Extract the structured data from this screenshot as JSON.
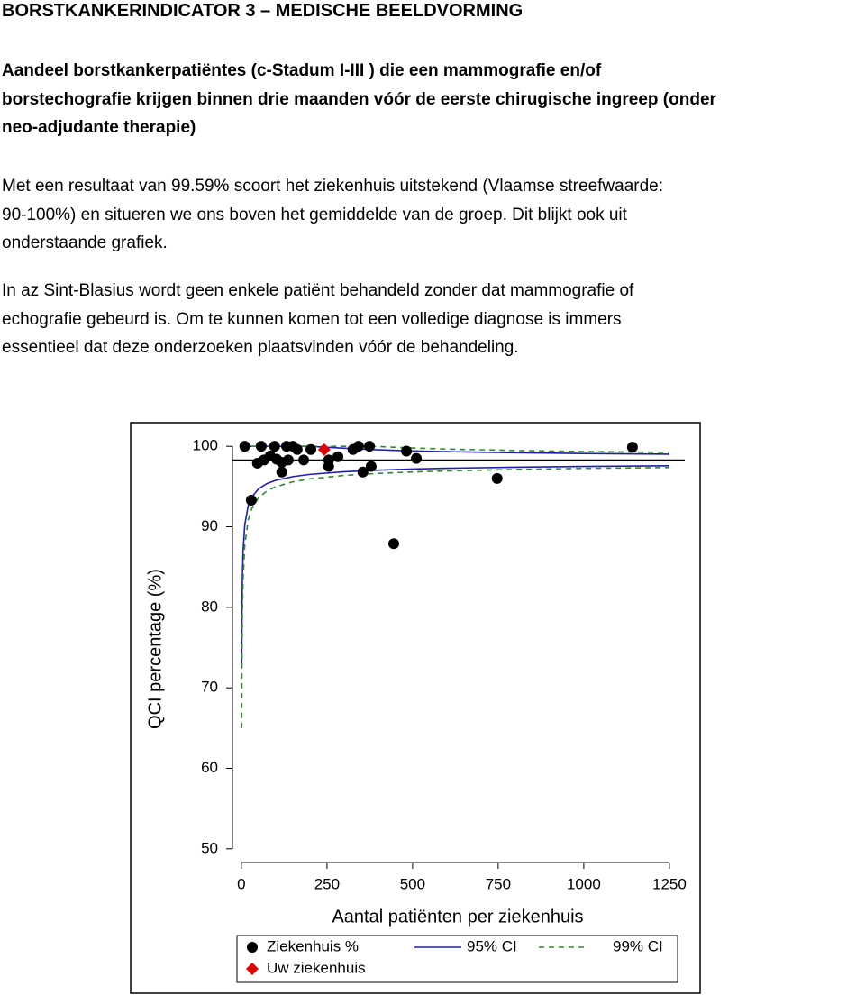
{
  "header": {
    "title": "BORSTKANKERINDICATOR 3 – MEDISCHE BEELDVORMING"
  },
  "intro": {
    "lines": [
      "Aandeel borstkankerpatiëntes (c-Stadum I-III ) die een mammografie en/of",
      "borstechografie krijgen binnen drie maanden vóór de eerste chirugische ingreep (onder",
      "neo-adjudante therapie)"
    ]
  },
  "paragraphs": [
    {
      "lines": [
        "Met een resultaat van 99.59% scoort het ziekenhuis uitstekend (Vlaamse streefwaarde:",
        "90-100%) en situeren we ons boven het gemiddelde van de groep. Dit blijkt ook uit",
        "onderstaande grafiek."
      ]
    },
    {
      "lines": [
        "In az Sint-Blasius wordt geen enkele patiënt behandeld zonder dat mammografie of",
        "echografie gebeurd is. Om te kunnen komen tot een volledige diagnose is immers",
        "essentieel dat deze onderzoeken plaatsvinden vóór de behandeling."
      ]
    }
  ],
  "chart_data": {
    "type": "scatter",
    "x_label": "Aantal patiënten per ziekenhuis",
    "y_label": "QCI percentage (%)",
    "xlim": [
      -26,
      1295
    ],
    "ylim": [
      48.3,
      101.7
    ],
    "xticks": [
      0,
      250,
      500,
      750,
      1000,
      1250
    ],
    "yticks": [
      50,
      60,
      70,
      80,
      90,
      100
    ],
    "reference_line": 98.3,
    "series": [
      {
        "name": "Ziekenhuis %",
        "color": "#000000",
        "marker": "circle",
        "x": [
          10,
          58,
          97,
          132,
          150,
          163,
          203,
          342,
          374,
          482,
          1142,
          29,
          47,
          66,
          84,
          103,
          118,
          118,
          137,
          182,
          255,
          255,
          282,
          326,
          355,
          379,
          511,
          445,
          747
        ],
        "values": [
          100,
          100,
          100,
          100,
          100,
          99.6,
          99.6,
          100,
          100,
          99.4,
          99.9,
          93.3,
          97.9,
          98.3,
          98.8,
          98.4,
          98.0,
          96.8,
          98.3,
          98.3,
          98.3,
          97.5,
          98.7,
          99.6,
          96.8,
          97.5,
          98.5,
          87.9,
          96.0
        ]
      },
      {
        "name": "Uw ziekenhuis",
        "color": "#e00000",
        "marker": "diamond",
        "x": [
          242
        ],
        "values": [
          99.59
        ]
      }
    ],
    "ci": [
      {
        "name": "95% CI",
        "color": "#1f1fa8",
        "dashed": false,
        "x": [
          1,
          2,
          3,
          5,
          10,
          20,
          30,
          50,
          75,
          100,
          150,
          200,
          300,
          400,
          500,
          600,
          800,
          1000,
          1250
        ],
        "lower": [
          72.96,
          80.39,
          83.66,
          86.97,
          90.28,
          92.64,
          93.67,
          94.71,
          95.38,
          95.77,
          96.23,
          96.51,
          96.84,
          97.03,
          97.17,
          97.27,
          97.4,
          97.5,
          97.58
        ],
        "upper": [
          100,
          100,
          100,
          100,
          100,
          100,
          100,
          100,
          100,
          100,
          100,
          100,
          99.76,
          99.57,
          99.43,
          99.33,
          99.2,
          99.1,
          99.02
        ]
      },
      {
        "name": "99% CI",
        "color": "#2e8b2e",
        "dashed": true,
        "x": [
          1,
          2,
          3,
          5,
          10,
          20,
          30,
          50,
          75,
          100,
          150,
          200,
          300,
          400,
          500,
          600,
          800,
          1000,
          1250
        ],
        "lower": [
          64.99,
          74.75,
          79.06,
          83.41,
          87.76,
          90.86,
          92.22,
          93.59,
          94.46,
          94.97,
          95.58,
          95.95,
          96.38,
          96.63,
          96.81,
          96.94,
          97.12,
          97.25,
          97.36
        ],
        "upper": [
          100,
          100,
          100,
          100,
          100,
          100,
          100,
          100,
          100,
          100,
          100,
          100,
          100,
          99.97,
          99.79,
          99.66,
          99.48,
          99.35,
          99.24
        ]
      }
    ]
  }
}
